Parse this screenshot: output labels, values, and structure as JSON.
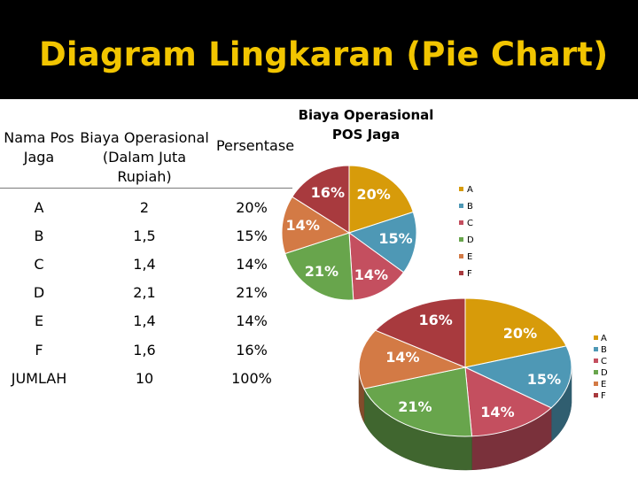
{
  "slide": {
    "title": "Diagram Lingkaran (Pie Chart)"
  },
  "table": {
    "headers": {
      "pos": [
        "Nama Pos",
        "Jaga"
      ],
      "biaya": [
        "Biaya Operasional",
        "(Dalam Juta",
        "Rupiah)"
      ],
      "persen": [
        "Persentase"
      ]
    },
    "rows": [
      {
        "pos": "A",
        "biaya": "2",
        "persen": "20%"
      },
      {
        "pos": "B",
        "biaya": "1,5",
        "persen": "15%"
      },
      {
        "pos": "C",
        "biaya": "1,4",
        "persen": "14%"
      },
      {
        "pos": "D",
        "biaya": "2,1",
        "persen": "21%"
      },
      {
        "pos": "E",
        "biaya": "1,4",
        "persen": "14%"
      },
      {
        "pos": "F",
        "biaya": "1,6",
        "persen": "16%"
      },
      {
        "pos": "JUMLAH",
        "biaya": "10",
        "persen": "100%"
      }
    ]
  },
  "colors": {
    "A": "#d79b0a",
    "B": "#4e98b5",
    "C": "#c44f5f",
    "D": "#68a54c",
    "E": "#d37a45",
    "F": "#a83a3e"
  },
  "chart_data": [
    {
      "type": "pie",
      "title": "Biaya Operasional POS Jaga",
      "categories": [
        "A",
        "B",
        "C",
        "D",
        "E",
        "F"
      ],
      "values": [
        20,
        15,
        14,
        21,
        14,
        16
      ],
      "labels": [
        "20%",
        "15%",
        "14%",
        "21%",
        "14%",
        "16%"
      ],
      "legend": "right"
    },
    {
      "type": "pie",
      "title": "",
      "style": "3d-tilted",
      "categories": [
        "A",
        "B",
        "C",
        "D",
        "E",
        "F"
      ],
      "values": [
        20,
        15,
        14,
        21,
        14,
        16
      ],
      "labels": [
        "20%",
        "15%",
        "14%",
        "21%",
        "14%",
        "16%"
      ],
      "legend": "right"
    }
  ]
}
